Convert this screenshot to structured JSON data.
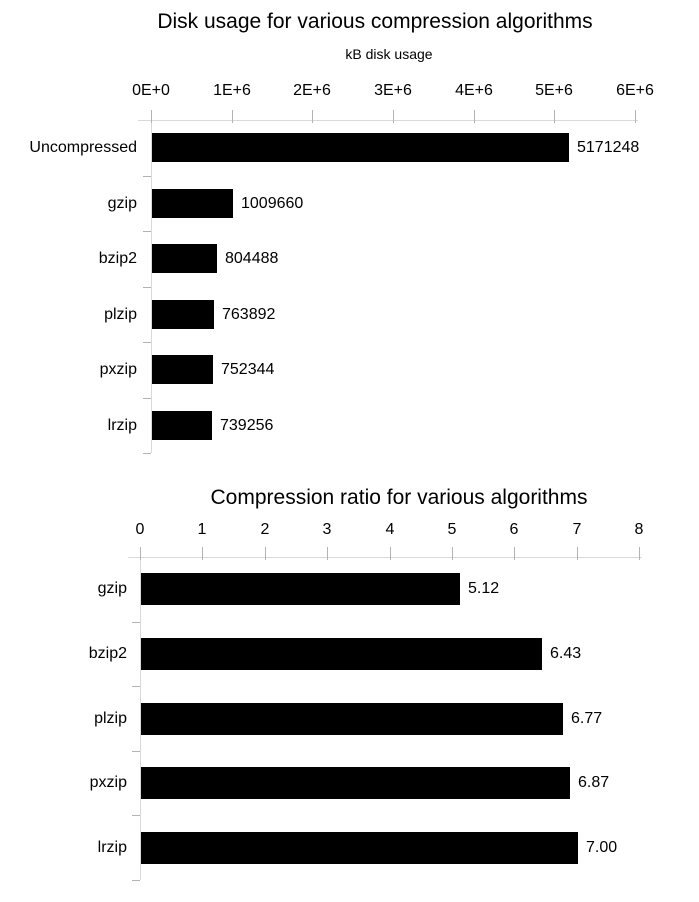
{
  "chart_data": [
    {
      "type": "bar",
      "orientation": "horizontal",
      "title": "Disk usage for various compression algorithms",
      "subtitle": "kB disk usage",
      "xlabel": "kB disk usage",
      "ylabel": "",
      "categories": [
        "Uncompressed",
        "gzip",
        "bzip2",
        "plzip",
        "pxzip",
        "lrzip"
      ],
      "values": [
        5171248,
        1009660,
        804488,
        763892,
        752344,
        739256
      ],
      "value_labels": [
        "5171248",
        "1009660",
        "804488",
        "763892",
        "752344",
        "739256"
      ],
      "axis_ticks": [
        "0E+0",
        "1E+6",
        "2E+6",
        "3E+6",
        "4E+6",
        "5E+6",
        "6E+6"
      ],
      "xlim": [
        0,
        6000000
      ],
      "grid": false,
      "legend": false,
      "bar_color": "#000000"
    },
    {
      "type": "bar",
      "orientation": "horizontal",
      "title": "Compression ratio for various algorithms",
      "subtitle": "",
      "xlabel": "",
      "ylabel": "",
      "categories": [
        "gzip",
        "bzip2",
        "plzip",
        "pxzip",
        "lrzip"
      ],
      "values": [
        5.12,
        6.43,
        6.77,
        6.87,
        7.0
      ],
      "value_labels": [
        "5.12",
        "6.43",
        "6.77",
        "6.87",
        "7.00"
      ],
      "axis_ticks": [
        "0",
        "1",
        "2",
        "3",
        "4",
        "5",
        "6",
        "7",
        "8"
      ],
      "xlim": [
        0,
        8
      ],
      "grid": false,
      "legend": false,
      "bar_color": "#000000"
    }
  ],
  "colors": {
    "background": "#ffffff",
    "bar": "#000000",
    "axis_line": "#d9d9d9",
    "tick_mark": "#b3b3b3",
    "text": "#000000"
  }
}
